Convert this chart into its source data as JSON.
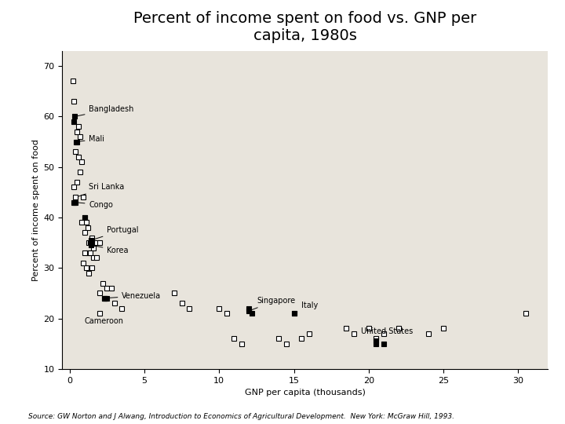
{
  "title": "Percent of income spent on food vs. GNP per\ncapita, 1980s",
  "xlabel": "GNP per capita (thousands)",
  "ylabel": "Percent of income spent on food",
  "xlim": [
    -0.5,
    32
  ],
  "ylim": [
    10,
    73
  ],
  "xticks": [
    0,
    5,
    10,
    15,
    20,
    25,
    30
  ],
  "yticks": [
    10,
    20,
    30,
    40,
    50,
    60,
    70
  ],
  "source_text": "Source: GW Norton and J Alwang, Introduction to Economics of Agricultural Development.  New York: McGraw Hill, 1993.",
  "fig_bg": "#ffffff",
  "plot_bg": "#e8e4dc",
  "scatter_open": [
    [
      0.2,
      67
    ],
    [
      0.3,
      63
    ],
    [
      0.5,
      57
    ],
    [
      0.6,
      58
    ],
    [
      0.7,
      56
    ],
    [
      0.4,
      53
    ],
    [
      0.6,
      52
    ],
    [
      0.8,
      51
    ],
    [
      0.7,
      49
    ],
    [
      0.5,
      47
    ],
    [
      0.3,
      46
    ],
    [
      0.9,
      44
    ],
    [
      1.0,
      40
    ],
    [
      1.1,
      39
    ],
    [
      0.8,
      39
    ],
    [
      1.2,
      38
    ],
    [
      1.0,
      37
    ],
    [
      1.5,
      36
    ],
    [
      1.3,
      35
    ],
    [
      1.8,
      35
    ],
    [
      2.0,
      35
    ],
    [
      1.6,
      34
    ],
    [
      1.2,
      33
    ],
    [
      1.4,
      33
    ],
    [
      1.0,
      33
    ],
    [
      1.6,
      32
    ],
    [
      1.8,
      32
    ],
    [
      0.9,
      31
    ],
    [
      1.1,
      30
    ],
    [
      1.5,
      30
    ],
    [
      1.3,
      29
    ],
    [
      2.2,
      27
    ],
    [
      2.5,
      26
    ],
    [
      2.8,
      26
    ],
    [
      2.0,
      25
    ],
    [
      2.4,
      24
    ],
    [
      3.0,
      23
    ],
    [
      3.5,
      22
    ],
    [
      7.0,
      25
    ],
    [
      7.5,
      23
    ],
    [
      8.0,
      22
    ],
    [
      10.0,
      22
    ],
    [
      10.5,
      21
    ],
    [
      11.0,
      16
    ],
    [
      11.5,
      15
    ],
    [
      14.0,
      16
    ],
    [
      14.5,
      15
    ],
    [
      15.5,
      16
    ],
    [
      16.0,
      17
    ],
    [
      18.5,
      18
    ],
    [
      19.0,
      17
    ],
    [
      20.0,
      18
    ],
    [
      20.5,
      16
    ],
    [
      21.0,
      17
    ],
    [
      22.0,
      18
    ],
    [
      24.0,
      17
    ],
    [
      25.0,
      18
    ],
    [
      30.5,
      21
    ]
  ],
  "scatter_filled": [
    [
      0.3,
      59
    ],
    [
      0.5,
      55
    ],
    [
      0.4,
      43
    ],
    [
      0.3,
      43
    ],
    [
      1.0,
      40
    ],
    [
      1.4,
      35
    ],
    [
      1.5,
      35
    ],
    [
      2.5,
      24
    ],
    [
      2.3,
      24
    ],
    [
      12.0,
      22
    ],
    [
      12.2,
      21
    ],
    [
      15.0,
      21
    ],
    [
      20.5,
      15
    ],
    [
      21.0,
      15
    ]
  ],
  "annotations": [
    {
      "label": "Bangladesh",
      "point": [
        0.35,
        60
      ],
      "text": [
        1.3,
        61.5
      ],
      "filled": true
    },
    {
      "label": "Mali",
      "point": [
        0.45,
        55
      ],
      "text": [
        1.3,
        55.5
      ],
      "filled": true
    },
    {
      "label": "Sri Lanka",
      "point": [
        0.4,
        44
      ],
      "text": [
        1.3,
        46.0
      ],
      "filled": false
    },
    {
      "label": "Congo",
      "point": [
        0.35,
        43
      ],
      "text": [
        1.3,
        42.5
      ],
      "filled": true
    },
    {
      "label": "Portugal",
      "point": [
        1.45,
        35.5
      ],
      "text": [
        2.5,
        37.5
      ],
      "filled": true
    },
    {
      "label": "Korea",
      "point": [
        1.45,
        34.5
      ],
      "text": [
        2.5,
        33.5
      ],
      "filled": true
    },
    {
      "label": "Venezuela",
      "point": [
        2.3,
        24
      ],
      "text": [
        3.5,
        24.5
      ],
      "filled": true
    },
    {
      "label": "Cameroon",
      "point": [
        2.0,
        21
      ],
      "text": [
        1.0,
        19.5
      ],
      "filled": false
    },
    {
      "label": "Singapore",
      "point": [
        12.0,
        21.5
      ],
      "text": [
        12.5,
        23.5
      ],
      "filled": true
    },
    {
      "label": "Italy",
      "point": [
        15.0,
        21.0
      ],
      "text": [
        15.5,
        22.5
      ],
      "filled": true
    },
    {
      "label": "United States",
      "point": [
        20.5,
        15.5
      ],
      "text": [
        19.5,
        17.5
      ],
      "filled": true
    }
  ]
}
